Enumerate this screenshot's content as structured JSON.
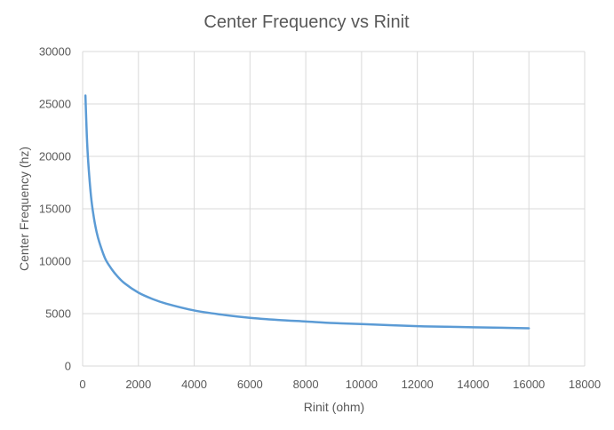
{
  "chart_data": {
    "type": "line",
    "title": "Center Frequency vs Rinit",
    "xlabel": "Rinit (ohm)",
    "ylabel": "Center Frequency (hz)",
    "xlim": [
      0,
      18000
    ],
    "ylim": [
      0,
      30000
    ],
    "x_ticks": [
      0,
      2000,
      4000,
      6000,
      8000,
      10000,
      12000,
      14000,
      16000,
      18000
    ],
    "y_ticks": [
      0,
      5000,
      10000,
      15000,
      20000,
      25000,
      30000
    ],
    "grid": true,
    "legend": "none",
    "series": [
      {
        "color": "#5b9bd5",
        "x": [
          100,
          150,
          200,
          300,
          400,
          500,
          600,
          800,
          1000,
          1200,
          1500,
          2000,
          2500,
          3000,
          4000,
          5000,
          6000,
          7000,
          8000,
          9000,
          10000,
          11000,
          12000,
          13000,
          14000,
          15000,
          16000
        ],
        "y": [
          25800,
          22000,
          19500,
          16200,
          14200,
          12800,
          11800,
          10300,
          9400,
          8700,
          7900,
          7000,
          6400,
          5950,
          5300,
          4900,
          4600,
          4400,
          4250,
          4100,
          4000,
          3900,
          3800,
          3750,
          3700,
          3650,
          3600
        ]
      }
    ]
  }
}
